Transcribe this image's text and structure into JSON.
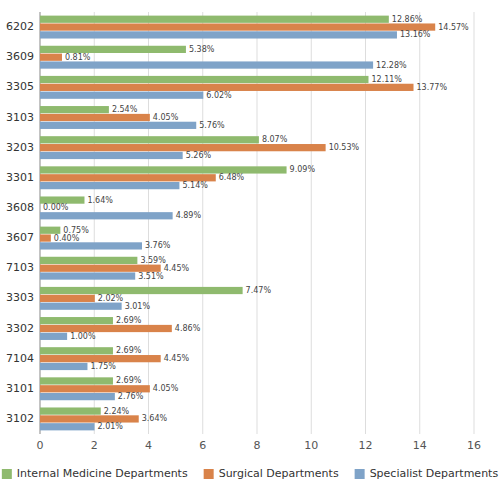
{
  "chart_data": {
    "type": "bar",
    "orientation": "horizontal",
    "categories": [
      "6202",
      "3609",
      "3305",
      "3103",
      "3203",
      "3301",
      "3608",
      "3607",
      "7103",
      "3303",
      "3302",
      "7104",
      "3101",
      "3102"
    ],
    "series": [
      {
        "name": "Internal Medicine Departments",
        "color": "#8fba6e",
        "values": [
          12.86,
          5.38,
          12.11,
          2.54,
          8.07,
          9.09,
          1.64,
          0.75,
          3.59,
          7.47,
          2.69,
          2.69,
          2.69,
          2.24
        ],
        "value_labels": [
          "12.86%",
          "5.38%",
          "12.11%",
          "2.54%",
          "8.07%",
          "9.09%",
          "1.64%",
          "0.75%",
          "3.59%",
          "7.47%",
          "2.69%",
          "2.69%",
          "2.69%",
          "2.24%"
        ]
      },
      {
        "name": "Surgical Departments",
        "color": "#d9834a",
        "values": [
          14.57,
          0.81,
          13.77,
          4.05,
          10.53,
          6.48,
          0.0,
          0.4,
          4.45,
          2.02,
          4.86,
          4.45,
          4.05,
          3.64
        ],
        "value_labels": [
          "14.57%",
          "0.81%",
          "13.77%",
          "4.05%",
          "10.53%",
          "6.48%",
          "0.00%",
          "0.40%",
          "4.45%",
          "2.02%",
          "4.86%",
          "4.45%",
          "4.05%",
          "3.64%"
        ]
      },
      {
        "name": "Specialist Departments",
        "color": "#7fa3c8",
        "values": [
          13.16,
          12.28,
          6.02,
          5.76,
          5.26,
          5.14,
          4.89,
          3.76,
          3.51,
          3.01,
          1.0,
          1.75,
          2.76,
          2.01
        ],
        "value_labels": [
          "13.16%",
          "12.28%",
          "6.02%",
          "5.76%",
          "5.26%",
          "5.14%",
          "4.89%",
          "3.76%",
          "3.51%",
          "3.01%",
          "1.00%",
          "1.75%",
          "2.76%",
          "2.01%"
        ]
      }
    ],
    "xlim": [
      0,
      16
    ],
    "xticks": [
      0,
      2,
      4,
      6,
      8,
      10,
      12,
      14,
      16
    ],
    "grid": true,
    "legend": "bottom",
    "data_labels": true
  }
}
